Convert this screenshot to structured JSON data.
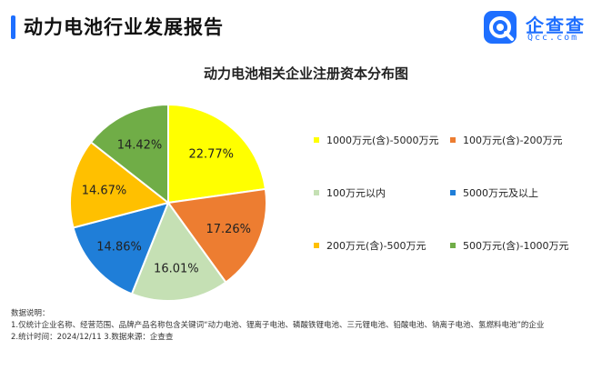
{
  "header": {
    "title": "动力电池行业发展报告"
  },
  "brand": {
    "name": "企查查",
    "sub": "Qcc.com",
    "accent": "#1e6fff"
  },
  "chart_data": {
    "type": "pie",
    "title": "动力电池相关企业注册资本分布图",
    "series": [
      {
        "name": "1000万元(含)-5000万元",
        "value": 22.77,
        "label": "22.77%",
        "color": "#ffff00"
      },
      {
        "name": "100万元(含)-200万元",
        "value": 17.26,
        "label": "17.26%",
        "color": "#ed7d31"
      },
      {
        "name": "100万元以内",
        "value": 16.01,
        "label": "16.01%",
        "color": "#c5e0b4"
      },
      {
        "name": "5000万元及以上",
        "value": 14.86,
        "label": "14.86%",
        "color": "#1f7ed8"
      },
      {
        "name": "200万元(含)-500万元",
        "value": 14.67,
        "label": "14.67%",
        "color": "#ffc000"
      },
      {
        "name": "500万元(含)-1000万元",
        "value": 14.42,
        "label": "14.42%",
        "color": "#70ad47"
      }
    ],
    "legend_position": "right"
  },
  "notes": {
    "heading": "数据说明：",
    "line1": "1.仅统计企业名称、经营范围、品牌产品名称包含关键词“动力电池、锂离子电池、磷酸铁锂电池、三元锂电池、铅酸电池、钠离子电池、氢燃料电池”的企业",
    "line2": "2.统计时间：2024/12/11    3.数据来源：企查查"
  }
}
